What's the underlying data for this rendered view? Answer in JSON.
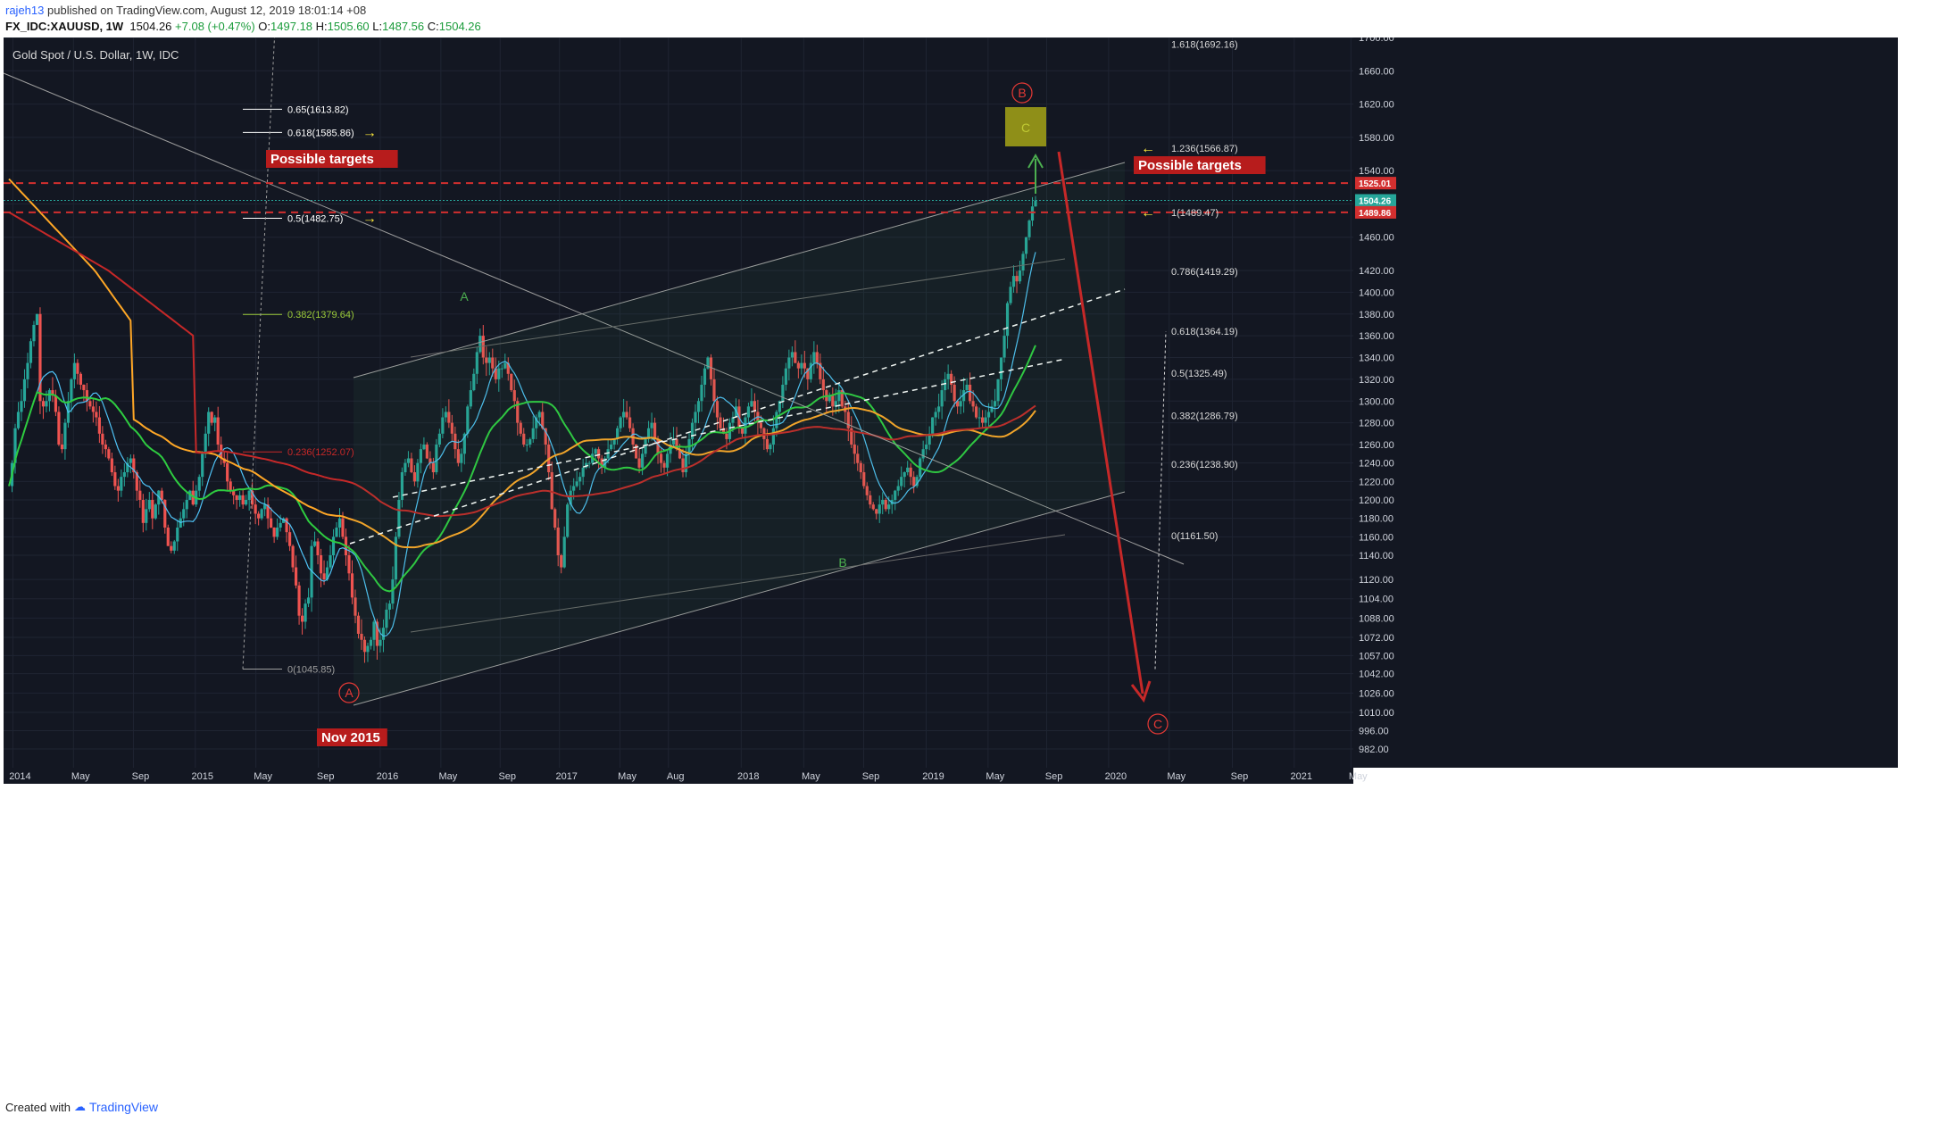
{
  "header": {
    "user": "rajeh13",
    "published": "published on TradingView.com, August 12, 2019 18:01:14 +08",
    "symbol": "FX_IDC:XAUUSD, 1W",
    "last": "1504.26",
    "change": "+7.08 (+0.47%)",
    "o_label": "O:",
    "o": "1497.18",
    "h_label": "H:",
    "h": "1505.60",
    "l_label": "L:",
    "l": "1487.56",
    "c_label": "C:",
    "c": "1504.26"
  },
  "footer": {
    "created_with": "Created with",
    "brand": "TradingView"
  },
  "colors": {
    "background": "#131722",
    "up": "#26a69a",
    "down": "#ef5350",
    "ma_red": "#c62828",
    "ma_orange": "#ffa726",
    "ma_green": "#2ecc40",
    "ma_blue": "#4fc3f7",
    "label_red": "#b71c1c",
    "target_box": "#8f8f18",
    "arrow_red": "#c62828",
    "arrow_green": "#4caf50",
    "arrow_yellow": "#ffeb3b"
  },
  "chart_data": {
    "type": "candlestick",
    "title": "Gold Spot / U.S. Dollar, 1W, IDC",
    "y_range": [
      972,
      1706
    ],
    "y_ticks": [
      "1700.00",
      "1660.00",
      "1620.00",
      "1580.00",
      "1540.00",
      "1500.00",
      "1460.00",
      "1420.00",
      "1400.00",
      "1380.00",
      "1360.00",
      "1340.00",
      "1320.00",
      "1300.00",
      "1280.00",
      "1260.00",
      "1240.00",
      "1220.00",
      "1200.00",
      "1180.00",
      "1160.00",
      "1140.00",
      "1120.00",
      "1104.00",
      "1088.00",
      "1072.00",
      "1057.00",
      "1042.00",
      "1026.00",
      "1010.00",
      "996.00",
      "982.00"
    ],
    "x_ticks": [
      "2014",
      "May",
      "Sep",
      "2015",
      "May",
      "Sep",
      "2016",
      "May",
      "Sep",
      "2017",
      "May",
      "Aug",
      "2018",
      "May",
      "Sep",
      "2019",
      "May",
      "Sep",
      "2020",
      "May",
      "Sep",
      "2021",
      "May"
    ],
    "price_tags": [
      {
        "label": "1525.01",
        "value": 1525.01,
        "color": "#d32f2f"
      },
      {
        "label": "1504.26",
        "value": 1504.26,
        "color": "#26a69a"
      },
      {
        "label": "1489.86",
        "value": 1489.86,
        "color": "#d32f2f"
      }
    ],
    "fib_left": [
      {
        "label": "0.65(1613.82)",
        "value": 1613.82,
        "color": "#ffffff"
      },
      {
        "label": "0.618(1585.86)",
        "value": 1585.86,
        "color": "#ffffff"
      },
      {
        "label": "0.5(1482.75)",
        "value": 1482.75,
        "color": "#ffffff"
      },
      {
        "label": "0.382(1379.64)",
        "value": 1379.64,
        "color": "#9ccc3a"
      },
      {
        "label": "0.236(1252.07)",
        "value": 1252.07,
        "color": "#c62828"
      },
      {
        "label": "0(1045.85)",
        "value": 1045.85,
        "color": "#9e9e9e"
      }
    ],
    "fib_right": [
      {
        "label": "1.618(1692.16)",
        "value": 1692.16
      },
      {
        "label": "1.236(1566.87)",
        "value": 1566.87
      },
      {
        "label": "1(1489.47)",
        "value": 1489.47
      },
      {
        "label": "0.786(1419.29)",
        "value": 1419.29
      },
      {
        "label": "0.618(1364.19)",
        "value": 1364.19
      },
      {
        "label": "0.5(1325.49)",
        "value": 1325.49
      },
      {
        "label": "0.382(1286.79)",
        "value": 1286.79
      },
      {
        "label": "0.236(1238.90)",
        "value": 1238.9
      },
      {
        "label": "0(1161.50)",
        "value": 1161.5
      }
    ],
    "annotations": {
      "possible_targets": "Possible targets",
      "nov_2015": "Nov 2015",
      "wave_A_circle": "A",
      "wave_B_circle": "B",
      "wave_C_circle": "C",
      "wave_a": "A",
      "wave_b": "B",
      "wave_c": "C"
    },
    "close_series": [
      1215,
      1240,
      1275,
      1290,
      1300,
      1320,
      1335,
      1355,
      1370,
      1380,
      1300,
      1295,
      1300,
      1310,
      1305,
      1290,
      1260,
      1255,
      1280,
      1300,
      1320,
      1335,
      1325,
      1315,
      1310,
      1300,
      1295,
      1290,
      1285,
      1270,
      1260,
      1255,
      1245,
      1230,
      1215,
      1210,
      1225,
      1230,
      1240,
      1245,
      1230,
      1210,
      1200,
      1175,
      1190,
      1200,
      1180,
      1195,
      1210,
      1200,
      1170,
      1150,
      1145,
      1155,
      1170,
      1180,
      1190,
      1200,
      1210,
      1195,
      1210,
      1225,
      1250,
      1270,
      1290,
      1280,
      1285,
      1260,
      1245,
      1240,
      1220,
      1210,
      1205,
      1200,
      1205,
      1195,
      1200,
      1210,
      1195,
      1185,
      1180,
      1190,
      1195,
      1180,
      1170,
      1160,
      1170,
      1175,
      1180,
      1165,
      1150,
      1130,
      1115,
      1090,
      1085,
      1100,
      1105,
      1150,
      1155,
      1140,
      1125,
      1120,
      1130,
      1140,
      1160,
      1170,
      1180,
      1160,
      1140,
      1125,
      1105,
      1090,
      1075,
      1070,
      1060,
      1065,
      1070,
      1085,
      1065,
      1070,
      1080,
      1095,
      1100,
      1120,
      1160,
      1200,
      1230,
      1240,
      1245,
      1230,
      1220,
      1240,
      1255,
      1260,
      1245,
      1240,
      1230,
      1260,
      1270,
      1285,
      1290,
      1280,
      1270,
      1255,
      1240,
      1250,
      1270,
      1295,
      1310,
      1325,
      1345,
      1360,
      1340,
      1335,
      1340,
      1330,
      1320,
      1330,
      1330,
      1335,
      1325,
      1310,
      1300,
      1280,
      1270,
      1260,
      1260,
      1265,
      1275,
      1285,
      1290,
      1275,
      1260,
      1230,
      1190,
      1170,
      1140,
      1130,
      1160,
      1195,
      1210,
      1215,
      1220,
      1225,
      1235,
      1240,
      1240,
      1250,
      1255,
      1245,
      1235,
      1245,
      1255,
      1260,
      1265,
      1275,
      1285,
      1290,
      1285,
      1275,
      1260,
      1245,
      1235,
      1250,
      1265,
      1275,
      1280,
      1265,
      1250,
      1240,
      1235,
      1250,
      1260,
      1265,
      1255,
      1245,
      1230,
      1250,
      1265,
      1280,
      1290,
      1300,
      1315,
      1330,
      1340,
      1320,
      1300,
      1285,
      1275,
      1270,
      1265,
      1280,
      1285,
      1295,
      1275,
      1270,
      1285,
      1295,
      1300,
      1290,
      1280,
      1275,
      1265,
      1255,
      1260,
      1275,
      1290,
      1300,
      1315,
      1330,
      1340,
      1345,
      1335,
      1330,
      1335,
      1330,
      1320,
      1335,
      1345,
      1335,
      1320,
      1310,
      1300,
      1305,
      1295,
      1300,
      1310,
      1295,
      1290,
      1275,
      1260,
      1250,
      1240,
      1230,
      1215,
      1205,
      1195,
      1190,
      1185,
      1195,
      1200,
      1190,
      1195,
      1200,
      1210,
      1215,
      1225,
      1230,
      1235,
      1225,
      1215,
      1225,
      1245,
      1255,
      1260,
      1270,
      1285,
      1290,
      1295,
      1310,
      1320,
      1325,
      1315,
      1300,
      1295,
      1300,
      1310,
      1315,
      1300,
      1295,
      1285,
      1285,
      1280,
      1285,
      1290,
      1295,
      1300,
      1320,
      1340,
      1360,
      1390,
      1405,
      1415,
      1410,
      1420,
      1440,
      1460,
      1480,
      1497,
      1504
    ]
  }
}
